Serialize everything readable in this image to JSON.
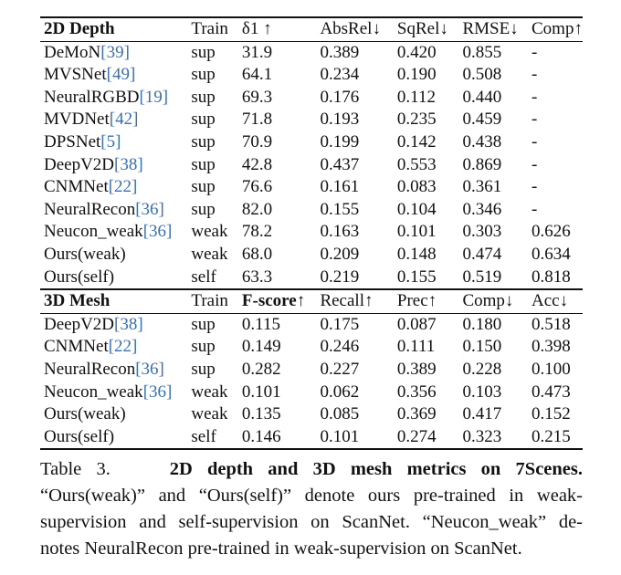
{
  "depth_table": {
    "headers": [
      "2D Depth",
      "Train",
      "δ1 ↑",
      "AbsRel↓",
      "SqRel↓",
      "RMSE↓",
      "Comp↑"
    ],
    "rows": [
      {
        "method": "DeMoN",
        "cite": "[39]",
        "train": "sup",
        "v": [
          "31.9",
          "0.389",
          "0.420",
          "0.855",
          "-"
        ]
      },
      {
        "method": "MVSNet",
        "cite": "[49]",
        "train": "sup",
        "v": [
          "64.1",
          "0.234",
          "0.190",
          "0.508",
          "-"
        ]
      },
      {
        "method": "NeuralRGBD",
        "cite": "[19]",
        "train": "sup",
        "v": [
          "69.3",
          "0.176",
          "0.112",
          "0.440",
          "-"
        ]
      },
      {
        "method": "MVDNet",
        "cite": "[42]",
        "train": "sup",
        "v": [
          "71.8",
          "0.193",
          "0.235",
          "0.459",
          "-"
        ]
      },
      {
        "method": "DPSNet",
        "cite": "[5]",
        "train": "sup",
        "v": [
          "70.9",
          "0.199",
          "0.142",
          "0.438",
          "-"
        ]
      },
      {
        "method": "DeepV2D",
        "cite": "[38]",
        "train": "sup",
        "v": [
          "42.8",
          "0.437",
          "0.553",
          "0.869",
          "-"
        ]
      },
      {
        "method": "CNMNet",
        "cite": "[22]",
        "train": "sup",
        "v": [
          "76.6",
          "0.161",
          "0.083",
          "0.361",
          "-"
        ]
      },
      {
        "method": "NeuralRecon",
        "cite": "[36]",
        "train": "sup",
        "v": [
          "82.0",
          "0.155",
          "0.104",
          "0.346",
          "-"
        ]
      },
      {
        "method": "Neucon_weak",
        "cite": "[36]",
        "train": "weak",
        "v": [
          "78.2",
          "0.163",
          "0.101",
          "0.303",
          "0.626"
        ]
      },
      {
        "method": "Ours(weak)",
        "cite": "",
        "train": "weak",
        "v": [
          "68.0",
          "0.209",
          "0.148",
          "0.474",
          "0.634"
        ]
      },
      {
        "method": "Ours(self)",
        "cite": "",
        "train": "self",
        "v": [
          "63.3",
          "0.219",
          "0.155",
          "0.519",
          "0.818"
        ]
      }
    ]
  },
  "mesh_table": {
    "headers": [
      "3D Mesh",
      "Train",
      "F-score↑",
      "Recall↑",
      "Prec↑",
      "Comp↓",
      "Acc↓"
    ],
    "rows": [
      {
        "method": "DeepV2D",
        "cite": "[38]",
        "train": "sup",
        "v": [
          "0.115",
          "0.175",
          "0.087",
          "0.180",
          "0.518"
        ]
      },
      {
        "method": "CNMNet",
        "cite": "[22]",
        "train": "sup",
        "v": [
          "0.149",
          "0.246",
          "0.111",
          "0.150",
          "0.398"
        ]
      },
      {
        "method": "NeuralRecon",
        "cite": "[36]",
        "train": "sup",
        "v": [
          "0.282",
          "0.227",
          "0.389",
          "0.228",
          "0.100"
        ]
      },
      {
        "method": "Neucon_weak",
        "cite": "[36]",
        "train": "weak",
        "v": [
          "0.101",
          "0.062",
          "0.356",
          "0.103",
          "0.473"
        ]
      },
      {
        "method": "Ours(weak)",
        "cite": "",
        "train": "weak",
        "v": [
          "0.135",
          "0.085",
          "0.369",
          "0.417",
          "0.152"
        ]
      },
      {
        "method": "Ours(self)",
        "cite": "",
        "train": "self",
        "v": [
          "0.146",
          "0.101",
          "0.274",
          "0.323",
          "0.215"
        ]
      }
    ]
  },
  "caption": {
    "label": "Table 3.",
    "title": "2D depth and 3D mesh metrics on 7Scenes.",
    "lines": [
      "“Ours(weak)” and “Ours(self)” denote ours pre-trained in weak-",
      "supervision and self-supervision on ScanNet. “Neucon_weak” de-",
      "notes NeuralRecon pre-trained in weak-supervision on ScanNet."
    ]
  }
}
